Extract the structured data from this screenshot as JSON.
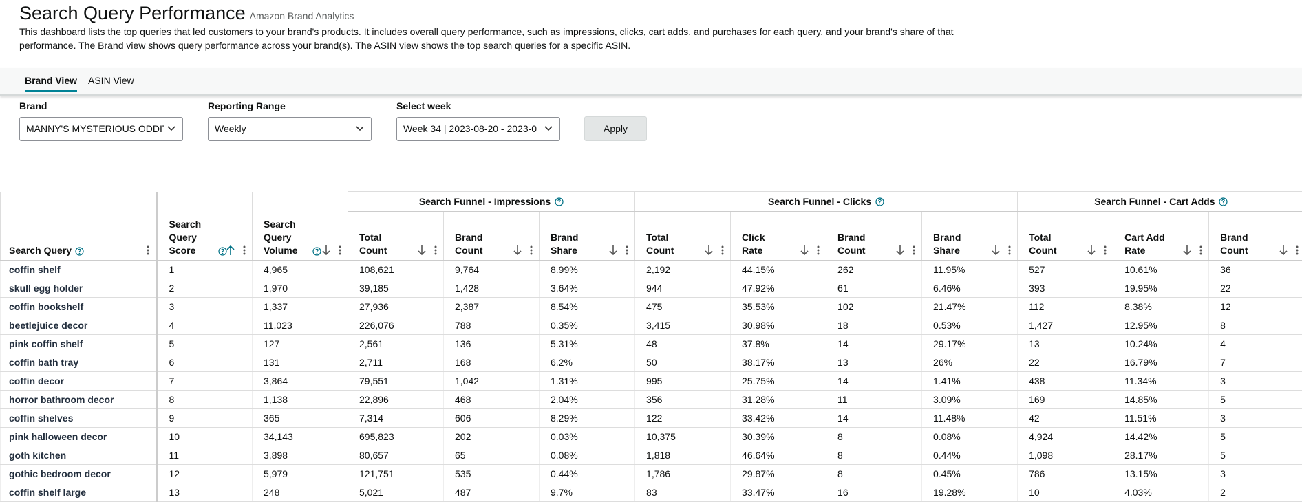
{
  "header": {
    "title": "Search Query Performance",
    "subtitle": "Amazon Brand Analytics",
    "description": "This dashboard lists the top queries that led customers to your brand's products. It includes overall query performance, such as impressions, clicks, cart adds, and purchases for each query, and your brand's share of that performance. The Brand view shows query performance across your brand(s). The ASIN view shows the top search queries for a specific ASIN."
  },
  "tabs": [
    "Brand View",
    "ASIN View"
  ],
  "filters": [
    {
      "label": "Brand",
      "value": "MANNY'S MYSTERIOUS ODDITI"
    },
    {
      "label": "Reporting Range",
      "value": "Weekly"
    },
    {
      "label": "Select week",
      "value": "Week 34 | 2023-08-20 - 2023-0"
    }
  ],
  "apply_button": "Apply",
  "table": {
    "columns": [
      "Search Query",
      "Search Query Score",
      "Search Query Volume"
    ],
    "groups": [
      {
        "label": "Search Funnel - Impressions",
        "columns": [
          "Total Count",
          "Brand Count",
          "Brand Share"
        ]
      },
      {
        "label": "Search Funnel - Clicks",
        "columns": [
          "Total Count",
          "Click Rate",
          "Brand Count",
          "Brand Share"
        ]
      },
      {
        "label": "Search Funnel - Cart Adds",
        "columns": [
          "Total Count",
          "Cart Add Rate",
          "Brand Count"
        ]
      }
    ],
    "rows": [
      [
        "coffin shelf",
        "1",
        "4,965",
        "108,621",
        "9,764",
        "8.99%",
        "2,192",
        "44.15%",
        "262",
        "11.95%",
        "527",
        "10.61%",
        "36"
      ],
      [
        "skull egg holder",
        "2",
        "1,970",
        "39,185",
        "1,428",
        "3.64%",
        "944",
        "47.92%",
        "61",
        "6.46%",
        "393",
        "19.95%",
        "22"
      ],
      [
        "coffin bookshelf",
        "3",
        "1,337",
        "27,936",
        "2,387",
        "8.54%",
        "475",
        "35.53%",
        "102",
        "21.47%",
        "112",
        "8.38%",
        "12"
      ],
      [
        "beetlejuice decor",
        "4",
        "11,023",
        "226,076",
        "788",
        "0.35%",
        "3,415",
        "30.98%",
        "18",
        "0.53%",
        "1,427",
        "12.95%",
        "8"
      ],
      [
        "pink coffin shelf",
        "5",
        "127",
        "2,561",
        "136",
        "5.31%",
        "48",
        "37.8%",
        "14",
        "29.17%",
        "13",
        "10.24%",
        "4"
      ],
      [
        "coffin bath tray",
        "6",
        "131",
        "2,711",
        "168",
        "6.2%",
        "50",
        "38.17%",
        "13",
        "26%",
        "22",
        "16.79%",
        "7"
      ],
      [
        "coffin decor",
        "7",
        "3,864",
        "79,551",
        "1,042",
        "1.31%",
        "995",
        "25.75%",
        "14",
        "1.41%",
        "438",
        "11.34%",
        "3"
      ],
      [
        "horror bathroom decor",
        "8",
        "1,138",
        "22,896",
        "468",
        "2.04%",
        "356",
        "31.28%",
        "11",
        "3.09%",
        "169",
        "14.85%",
        "5"
      ],
      [
        "coffin shelves",
        "9",
        "365",
        "7,314",
        "606",
        "8.29%",
        "122",
        "33.42%",
        "14",
        "11.48%",
        "42",
        "11.51%",
        "3"
      ],
      [
        "pink halloween decor",
        "10",
        "34,143",
        "695,823",
        "202",
        "0.03%",
        "10,375",
        "30.39%",
        "8",
        "0.08%",
        "4,924",
        "14.42%",
        "5"
      ],
      [
        "goth kitchen",
        "11",
        "3,898",
        "80,657",
        "65",
        "0.08%",
        "1,818",
        "46.64%",
        "8",
        "0.44%",
        "1,098",
        "28.17%",
        "5"
      ],
      [
        "gothic bedroom decor",
        "12",
        "5,979",
        "121,751",
        "535",
        "0.44%",
        "1,786",
        "29.87%",
        "8",
        "0.45%",
        "786",
        "13.15%",
        "3"
      ],
      [
        "coffin shelf large",
        "13",
        "248",
        "5,021",
        "487",
        "9.7%",
        "83",
        "33.47%",
        "16",
        "19.28%",
        "10",
        "4.03%",
        "2"
      ]
    ]
  }
}
